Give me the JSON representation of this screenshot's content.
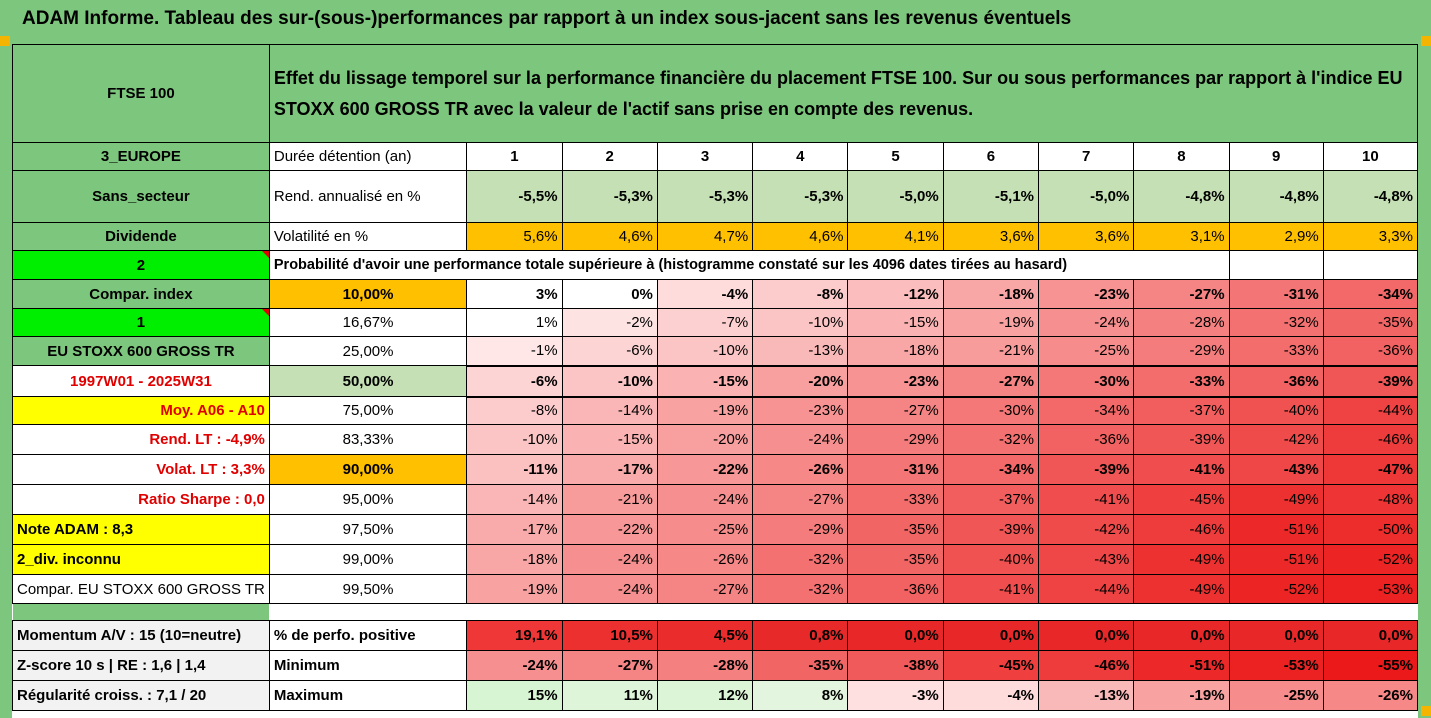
{
  "title": "ADAM Informe. Tableau des sur-(sous-)performances par rapport à un index sous-jacent sans les revenus éventuels",
  "header": {
    "asset": "FTSE 100",
    "description": "Effet du lissage temporel sur la performance financière du placement FTSE 100. Sur ou sous performances par rapport à l'indice EU STOXX 600 GROSS TR avec la valeur de l'actif sans prise en compte des revenus."
  },
  "left": {
    "region": "3_EUROPE",
    "sector": "Sans_secteur",
    "dividend": "Dividende",
    "two": "2",
    "compar_index": "Compar. index",
    "one": "1",
    "index_name": "EU STOXX 600 GROSS TR",
    "period": "1997W01 - 2025W31",
    "moy": "Moy. A06 - A10",
    "rend_lt": "Rend. LT :   -4,9%",
    "volat_lt": "Volat. LT :   3,3%",
    "sharpe": "Ratio Sharpe :   0,0",
    "note": "Note ADAM : 8,3",
    "div": "2_div. inconnu",
    "compar_full": "Compar. EU STOXX 600 GROSS TR",
    "momentum": "Momentum A/V : 15 (10=neutre)",
    "zscore": "Z-score 10 s  |  RE : 1,6  |  1,4",
    "regularite": "Régularité croiss. : 7,1 / 20"
  },
  "labels": {
    "duree": "Durée détention (an)",
    "rend": "Rend. annualisé en %",
    "vol": "Volatilité en %",
    "proba": "Probabilité d'avoir une performance totale supérieure à (histogramme constaté sur les 4096 dates tirées au hasard)",
    "pos": "% de perfo. positive",
    "min": "Minimum",
    "max": "Maximum"
  },
  "years": [
    "1",
    "2",
    "3",
    "4",
    "5",
    "6",
    "7",
    "8",
    "9",
    "10"
  ],
  "rend": [
    "-5,5%",
    "-5,3%",
    "-5,3%",
    "-5,3%",
    "-5,0%",
    "-5,1%",
    "-5,0%",
    "-4,8%",
    "-4,8%",
    "-4,8%"
  ],
  "vol": [
    "5,6%",
    "4,6%",
    "4,7%",
    "4,6%",
    "4,1%",
    "3,6%",
    "3,6%",
    "3,1%",
    "2,9%",
    "3,3%"
  ],
  "percentiles": [
    {
      "p": "10,00%",
      "vals": [
        "3%",
        "0%",
        "-4%",
        "-8%",
        "-12%",
        "-18%",
        "-23%",
        "-27%",
        "-31%",
        "-34%"
      ]
    },
    {
      "p": "16,67%",
      "vals": [
        "1%",
        "-2%",
        "-7%",
        "-10%",
        "-15%",
        "-19%",
        "-24%",
        "-28%",
        "-32%",
        "-35%"
      ]
    },
    {
      "p": "25,00%",
      "vals": [
        "-1%",
        "-6%",
        "-10%",
        "-13%",
        "-18%",
        "-21%",
        "-25%",
        "-29%",
        "-33%",
        "-36%"
      ]
    },
    {
      "p": "50,00%",
      "vals": [
        "-6%",
        "-10%",
        "-15%",
        "-20%",
        "-23%",
        "-27%",
        "-30%",
        "-33%",
        "-36%",
        "-39%"
      ]
    },
    {
      "p": "75,00%",
      "vals": [
        "-8%",
        "-14%",
        "-19%",
        "-23%",
        "-27%",
        "-30%",
        "-34%",
        "-37%",
        "-40%",
        "-44%"
      ]
    },
    {
      "p": "83,33%",
      "vals": [
        "-10%",
        "-15%",
        "-20%",
        "-24%",
        "-29%",
        "-32%",
        "-36%",
        "-39%",
        "-42%",
        "-46%"
      ]
    },
    {
      "p": "90,00%",
      "vals": [
        "-11%",
        "-17%",
        "-22%",
        "-26%",
        "-31%",
        "-34%",
        "-39%",
        "-41%",
        "-43%",
        "-47%"
      ]
    },
    {
      "p": "95,00%",
      "vals": [
        "-14%",
        "-21%",
        "-24%",
        "-27%",
        "-33%",
        "-37%",
        "-41%",
        "-45%",
        "-49%",
        "-48%"
      ]
    },
    {
      "p": "97,50%",
      "vals": [
        "-17%",
        "-22%",
        "-25%",
        "-29%",
        "-35%",
        "-39%",
        "-42%",
        "-46%",
        "-51%",
        "-50%"
      ]
    },
    {
      "p": "99,00%",
      "vals": [
        "-18%",
        "-24%",
        "-26%",
        "-32%",
        "-35%",
        "-40%",
        "-43%",
        "-49%",
        "-51%",
        "-52%"
      ]
    },
    {
      "p": "99,50%",
      "vals": [
        "-19%",
        "-24%",
        "-27%",
        "-32%",
        "-36%",
        "-41%",
        "-44%",
        "-49%",
        "-52%",
        "-53%"
      ]
    }
  ],
  "pos": [
    "19,1%",
    "10,5%",
    "4,5%",
    "0,8%",
    "0,0%",
    "0,0%",
    "0,0%",
    "0,0%",
    "0,0%",
    "0,0%"
  ],
  "min": [
    "-24%",
    "-27%",
    "-28%",
    "-35%",
    "-38%",
    "-45%",
    "-46%",
    "-51%",
    "-53%",
    "-55%"
  ],
  "max": [
    "15%",
    "11%",
    "12%",
    "8%",
    "-3%",
    "-4%",
    "-13%",
    "-19%",
    "-25%",
    "-26%"
  ],
  "colors": {
    "green": "#7dc67d",
    "light_green": "#c5e0b4",
    "bright_green": "#00ee00",
    "yellow": "#ffff00",
    "orange": "#ffc000",
    "red": "#e00000"
  }
}
